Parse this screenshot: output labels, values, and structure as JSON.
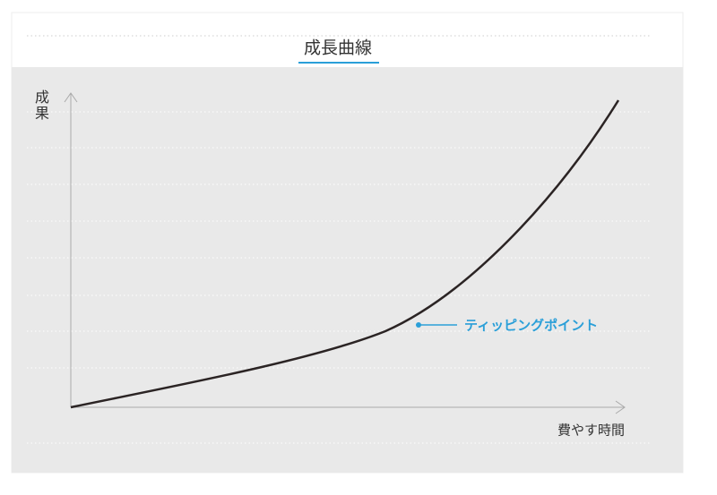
{
  "title": "成長曲線",
  "y_axis_label": "成果",
  "x_axis_label": "費やす時間",
  "annotation": "ティッピングポイント"
}
